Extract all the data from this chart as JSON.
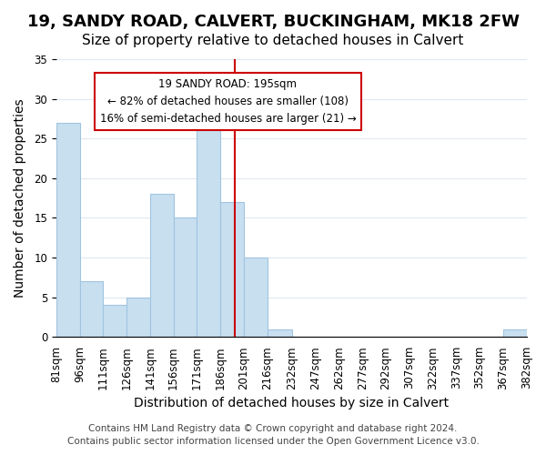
{
  "title": "19, SANDY ROAD, CALVERT, BUCKINGHAM, MK18 2FW",
  "subtitle": "Size of property relative to detached houses in Calvert",
  "xlabel": "Distribution of detached houses by size in Calvert",
  "ylabel": "Number of detached properties",
  "bin_edges": [
    81,
    96,
    111,
    126,
    141,
    156,
    171,
    186,
    201,
    216,
    232,
    247,
    262,
    277,
    292,
    307,
    322,
    337,
    352,
    367,
    382
  ],
  "bin_labels": [
    "81sqm",
    "96sqm",
    "111sqm",
    "126sqm",
    "141sqm",
    "156sqm",
    "171sqm",
    "186sqm",
    "201sqm",
    "216sqm",
    "232sqm",
    "247sqm",
    "262sqm",
    "277sqm",
    "292sqm",
    "307sqm",
    "322sqm",
    "337sqm",
    "352sqm",
    "367sqm",
    "382sqm"
  ],
  "counts": [
    27,
    7,
    4,
    5,
    18,
    15,
    27,
    17,
    10,
    1,
    0,
    0,
    0,
    0,
    0,
    0,
    0,
    0,
    0,
    1
  ],
  "bar_color": "#c8dff0",
  "bar_edge_color": "#a0c4e0",
  "vline_x": 195,
  "vline_color": "#cc0000",
  "ylim": [
    0,
    35
  ],
  "yticks": [
    0,
    5,
    10,
    15,
    20,
    25,
    30,
    35
  ],
  "annotation_title": "19 SANDY ROAD: 195sqm",
  "annotation_line1": "← 82% of detached houses are smaller (108)",
  "annotation_line2": "16% of semi-detached houses are larger (21) →",
  "annotation_box_color": "#ffffff",
  "annotation_box_edge": "#cc0000",
  "footer_line1": "Contains HM Land Registry data © Crown copyright and database right 2024.",
  "footer_line2": "Contains public sector information licensed under the Open Government Licence v3.0.",
  "background_color": "#ffffff",
  "grid_color": "#e0e8f0",
  "title_fontsize": 13,
  "subtitle_fontsize": 11,
  "axis_label_fontsize": 10,
  "tick_fontsize": 8.5,
  "footer_fontsize": 7.5
}
